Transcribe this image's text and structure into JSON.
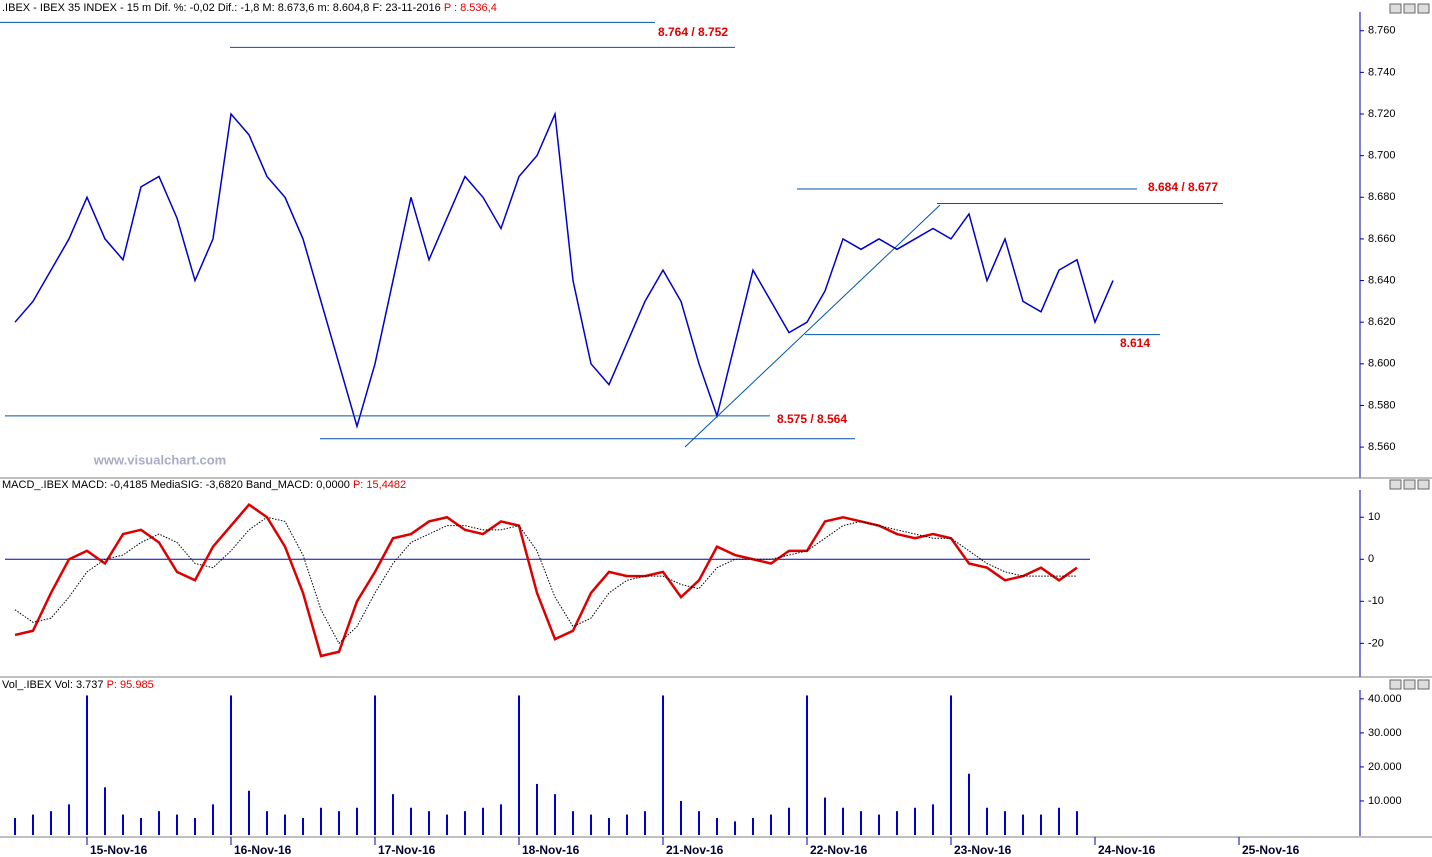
{
  "header": {
    "text": ".IBEX - IBEX 35 INDEX - 15 m Dif. %: -0,02 Dif.: -1,8 M: 8.673,6 m: 8.604,8 F: 23-11-2016",
    "last": "P : 8.536,4"
  },
  "watermark": "www.visualchart.com",
  "chart_data": [
    {
      "type": "line",
      "series": [
        {
          "color": "#0000cc",
          "values": [
            8620,
            8630,
            8645,
            8660,
            8680,
            8660,
            8650,
            8685,
            8690,
            8670,
            8640,
            8660,
            8720,
            8710,
            8690,
            8680,
            8660,
            8630,
            8600,
            8570,
            8600,
            8640,
            8680,
            8650,
            8670,
            8690,
            8680,
            8665,
            8690,
            8700,
            8720,
            8640,
            8600,
            8590,
            8610,
            8630,
            8645,
            8630,
            8600,
            8575,
            8610,
            8645,
            8630,
            8615,
            8620,
            8635,
            8660,
            8655,
            8660,
            8655,
            8660,
            8665,
            8660,
            8672,
            8640,
            8660,
            8630,
            8625,
            8645,
            8650,
            8620,
            8640,
            null,
            null,
            null,
            null,
            null,
            null,
            null
          ]
        }
      ],
      "ylim": [
        8549,
        8769
      ],
      "yticks": [
        {
          "value": 8560,
          "label": "8.560"
        },
        {
          "value": 8580,
          "label": "8.580"
        },
        {
          "value": 8600,
          "label": "8.600"
        },
        {
          "value": 8620,
          "label": "8.620"
        },
        {
          "value": 8640,
          "label": "8.640"
        },
        {
          "value": 8660,
          "label": "8.660"
        },
        {
          "value": 8680,
          "label": "8.680"
        },
        {
          "value": 8700,
          "label": "8.700"
        },
        {
          "value": 8720,
          "label": "8.720"
        },
        {
          "value": 8740,
          "label": "8.740"
        },
        {
          "value": 8760,
          "label": "8.760"
        }
      ],
      "levels": [
        {
          "label": "8.764 / 8.752",
          "values": [
            8764,
            8752
          ]
        },
        {
          "label": "8.684 / 8.677",
          "values": [
            8684,
            8677
          ]
        },
        {
          "label": "8.614",
          "values": [
            8614
          ]
        },
        {
          "label": "8.575 / 8.564",
          "values": [
            8575,
            8564
          ]
        }
      ]
    },
    {
      "type": "line",
      "title": "MACD_.IBEX MACD: -0,4185 MediaSIG: -3,6820 Band_MACD: 0,0000",
      "title_value": "P: 15,4482",
      "series": [
        {
          "color": "#dd0000",
          "values": [
            -18,
            -17,
            -8,
            0,
            2,
            -1,
            6,
            7,
            4,
            -3,
            -5,
            3,
            8,
            13,
            10,
            3,
            -8,
            -23,
            -22,
            -10,
            -3,
            5,
            6,
            9,
            10,
            7,
            6,
            9,
            8,
            -8,
            -19,
            -17,
            -8,
            -3,
            -4,
            -4,
            -3,
            -9,
            -5,
            3,
            1,
            0,
            -1,
            2,
            2,
            9,
            10,
            9,
            8,
            6,
            5,
            6,
            5,
            -1,
            -2,
            -5,
            -4,
            -2,
            -5,
            -2,
            null,
            null,
            null,
            null,
            null,
            null,
            null,
            null,
            null
          ]
        },
        {
          "color": "#000000",
          "values": [
            -12,
            -15,
            -14,
            -9,
            -3,
            0,
            1,
            4,
            6,
            4,
            -1,
            -2,
            2,
            7,
            10,
            9,
            1,
            -12,
            -20,
            -16,
            -8,
            -1,
            4,
            6,
            8,
            8,
            7,
            7,
            8,
            2,
            -9,
            -16,
            -14,
            -8,
            -5,
            -4,
            -4,
            -6,
            -7,
            -2,
            0,
            0,
            0,
            1,
            2,
            5,
            8,
            9,
            8,
            7,
            6,
            5,
            5,
            2,
            -1,
            -3,
            -4,
            -4,
            -4,
            -4,
            null,
            null,
            null,
            null,
            null,
            null,
            null,
            null,
            null
          ]
        }
      ],
      "ylim": [
        -28,
        16
      ],
      "yticks": [
        10,
        0,
        -10,
        -20
      ]
    },
    {
      "type": "bar",
      "title": "Vol_.IBEX Vol: 3.737",
      "title_value": "P: 95.985",
      "categories": [
        null,
        null,
        null,
        null,
        "15-Nov-16",
        null,
        null,
        null,
        null,
        null,
        null,
        null,
        "16-Nov-16",
        null,
        null,
        null,
        null,
        null,
        null,
        null,
        "17-Nov-16",
        null,
        null,
        null,
        null,
        null,
        null,
        null,
        "18-Nov-16",
        null,
        null,
        null,
        null,
        null,
        null,
        null,
        "21-Nov-16",
        null,
        null,
        null,
        null,
        null,
        null,
        null,
        "22-Nov-16",
        null,
        null,
        null,
        null,
        null,
        null,
        null,
        "23-Nov-16",
        null,
        null,
        null,
        null,
        null,
        null,
        null,
        "24-Nov-16",
        null,
        null,
        null,
        null,
        null,
        null,
        null,
        "25-Nov-16"
      ],
      "series": [
        {
          "color": "#0000cc",
          "values": [
            5000,
            6000,
            7000,
            9000,
            41000,
            14000,
            6000,
            5000,
            7000,
            6000,
            5000,
            9000,
            41000,
            13000,
            7000,
            6000,
            5000,
            8000,
            7000,
            8000,
            41000,
            12000,
            8000,
            7000,
            6000,
            7000,
            8000,
            9000,
            41000,
            15000,
            12000,
            7000,
            6000,
            5000,
            6000,
            7000,
            41000,
            10000,
            7000,
            5000,
            4000,
            5000,
            6000,
            8000,
            41000,
            11000,
            8000,
            7000,
            6000,
            7000,
            8000,
            9000,
            41000,
            18000,
            8000,
            7000,
            6000,
            6000,
            8000,
            7000,
            null,
            null,
            null,
            null,
            null,
            null,
            null,
            null,
            null
          ]
        }
      ],
      "ylim": [
        0,
        42600
      ],
      "yticks": [
        {
          "value": 10000,
          "label": "10.000"
        },
        {
          "value": 20000,
          "label": "20.000"
        },
        {
          "value": 30000,
          "label": "30.000"
        },
        {
          "value": 40000,
          "label": "40.000"
        }
      ]
    }
  ]
}
